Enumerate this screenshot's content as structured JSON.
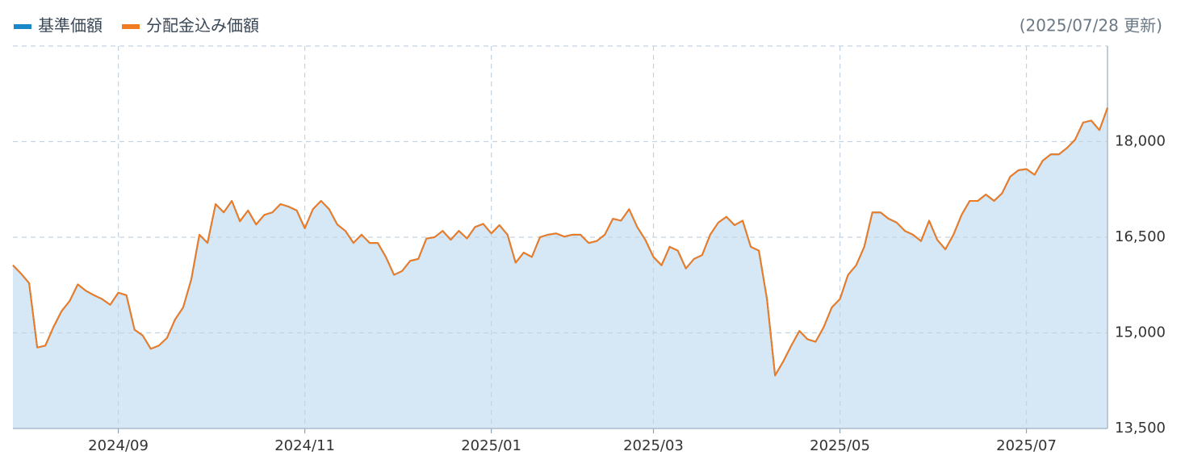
{
  "chart_data": {
    "type": "line",
    "update_note": "(2025/07/28 更新)",
    "categories": [
      null,
      null,
      null,
      null,
      null,
      null,
      null,
      null,
      null,
      null,
      null,
      null,
      null,
      "2024/09",
      null,
      null,
      null,
      null,
      null,
      null,
      null,
      null,
      null,
      null,
      null,
      null,
      null,
      null,
      null,
      null,
      null,
      null,
      null,
      null,
      null,
      null,
      "2024/11",
      null,
      null,
      null,
      null,
      null,
      null,
      null,
      null,
      null,
      null,
      null,
      null,
      null,
      null,
      null,
      null,
      null,
      null,
      null,
      null,
      null,
      null,
      "2025/01",
      null,
      null,
      null,
      null,
      null,
      null,
      null,
      null,
      null,
      null,
      null,
      null,
      null,
      null,
      null,
      null,
      null,
      null,
      null,
      "2025/03",
      null,
      null,
      null,
      null,
      null,
      null,
      null,
      null,
      null,
      null,
      null,
      null,
      null,
      null,
      null,
      null,
      null,
      null,
      null,
      null,
      null,
      null,
      "2025/05",
      null,
      null,
      null,
      null,
      null,
      null,
      null,
      null,
      null,
      null,
      null,
      null,
      null,
      null,
      null,
      null,
      null,
      null,
      null,
      null,
      null,
      null,
      "2025/07",
      null,
      null,
      null,
      null,
      null,
      null,
      null,
      null,
      null,
      null
    ],
    "series": [
      {
        "name": "基準価額",
        "color": "#1a87c9",
        "fill": "#d6e8f5",
        "values": [
          16060,
          15930,
          15780,
          14770,
          14800,
          15090,
          15340,
          15500,
          15760,
          15660,
          15590,
          15530,
          15440,
          15630,
          15590,
          15050,
          14960,
          14750,
          14800,
          14920,
          15210,
          15400,
          15840,
          16540,
          16410,
          17020,
          16890,
          17070,
          16750,
          16920,
          16700,
          16850,
          16890,
          17020,
          16980,
          16920,
          16640,
          16940,
          17070,
          16940,
          16700,
          16600,
          16410,
          16540,
          16410,
          16410,
          16190,
          15910,
          15970,
          16130,
          16160,
          16480,
          16500,
          16600,
          16460,
          16600,
          16480,
          16660,
          16710,
          16560,
          16690,
          16540,
          16100,
          16260,
          16190,
          16500,
          16540,
          16560,
          16510,
          16540,
          16540,
          16410,
          16440,
          16540,
          16790,
          16760,
          16940,
          16660,
          16460,
          16190,
          16060,
          16350,
          16290,
          16010,
          16160,
          16220,
          16540,
          16730,
          16820,
          16690,
          16760,
          16350,
          16290,
          15530,
          14330,
          14550,
          14800,
          15030,
          14900,
          14860,
          15090,
          15400,
          15530,
          15910,
          16060,
          16350,
          16890,
          16890,
          16790,
          16730,
          16600,
          16540,
          16440,
          16760,
          16460,
          16310,
          16540,
          16850,
          17070,
          17070,
          17170,
          17070,
          17190,
          17450,
          17550,
          17570,
          17480,
          17700,
          17800,
          17800,
          17900,
          18030,
          18300,
          18330,
          18180,
          18530
        ]
      },
      {
        "name": "分配金込み価額",
        "color": "#f07b22",
        "values": [
          16060,
          15930,
          15780,
          14770,
          14800,
          15090,
          15340,
          15500,
          15760,
          15660,
          15590,
          15530,
          15440,
          15630,
          15590,
          15050,
          14960,
          14750,
          14800,
          14920,
          15210,
          15400,
          15840,
          16540,
          16410,
          17020,
          16890,
          17070,
          16750,
          16920,
          16700,
          16850,
          16890,
          17020,
          16980,
          16920,
          16640,
          16940,
          17070,
          16940,
          16700,
          16600,
          16410,
          16540,
          16410,
          16410,
          16190,
          15910,
          15970,
          16130,
          16160,
          16480,
          16500,
          16600,
          16460,
          16600,
          16480,
          16660,
          16710,
          16560,
          16690,
          16540,
          16100,
          16260,
          16190,
          16500,
          16540,
          16560,
          16510,
          16540,
          16540,
          16410,
          16440,
          16540,
          16790,
          16760,
          16940,
          16660,
          16460,
          16190,
          16060,
          16350,
          16290,
          16010,
          16160,
          16220,
          16540,
          16730,
          16820,
          16690,
          16760,
          16350,
          16290,
          15530,
          14330,
          14550,
          14800,
          15030,
          14900,
          14860,
          15090,
          15400,
          15530,
          15910,
          16060,
          16350,
          16890,
          16890,
          16790,
          16730,
          16600,
          16540,
          16440,
          16760,
          16460,
          16310,
          16540,
          16850,
          17070,
          17070,
          17170,
          17070,
          17190,
          17450,
          17550,
          17570,
          17480,
          17700,
          17800,
          17800,
          17900,
          18030,
          18300,
          18330,
          18180,
          18530
        ]
      }
    ],
    "ylim": [
      13500,
      19500
    ],
    "yticks": [
      {
        "value": 13500,
        "label": "13,500"
      },
      {
        "value": 15000,
        "label": "15,000"
      },
      {
        "value": 16500,
        "label": "16,500"
      },
      {
        "value": 18000,
        "label": "18,000"
      }
    ],
    "grid": true
  }
}
